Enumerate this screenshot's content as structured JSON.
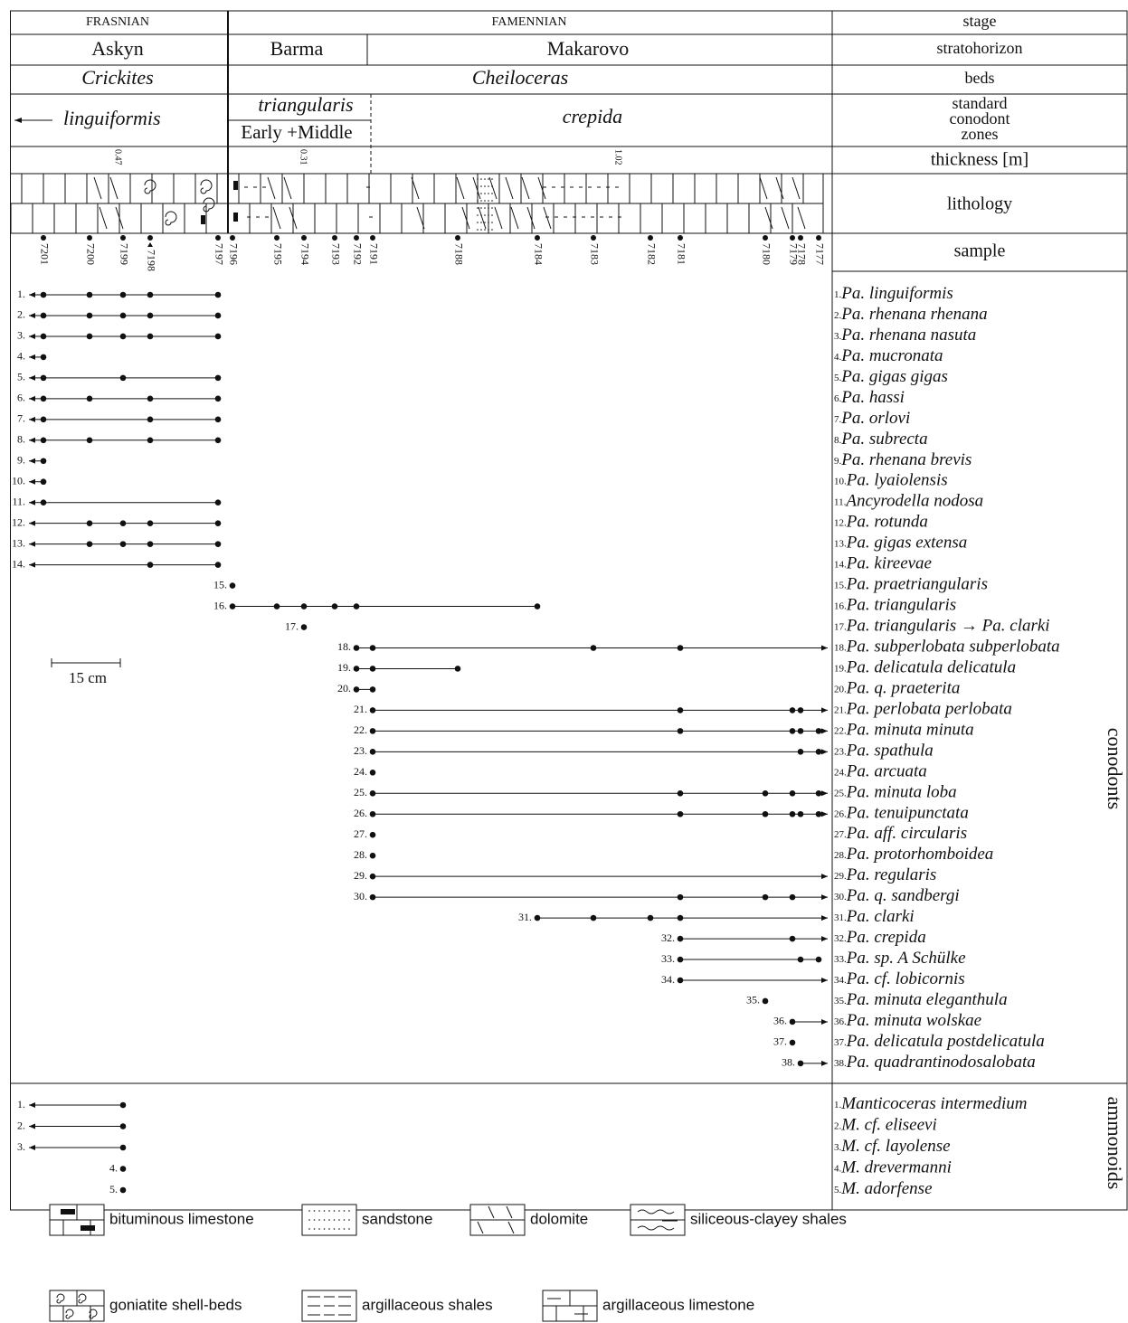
{
  "rows": {
    "stage": {
      "frasnian": "FRASNIAN",
      "famennian": "FAMENNIAN",
      "label": "stage"
    },
    "stratohorizon": {
      "askyn": "Askyn",
      "barma": "Barma",
      "makarovo": "Makarovo",
      "label": "stratohorizon"
    },
    "beds": {
      "crickites": "Crickites",
      "cheiloceras": "Cheiloceras",
      "label": "beds"
    },
    "zones": {
      "linguiformis": "linguiformis",
      "triangularis": "triangularis",
      "early_middle": "Early +Middle",
      "crepida": "crepida",
      "label": [
        "standard",
        "conodont",
        "zones"
      ]
    },
    "thickness": {
      "values": [
        0.47,
        0.31,
        1.02
      ],
      "label": "thickness [m]"
    },
    "lithology": {
      "label": "lithology"
    },
    "sample": {
      "ids": [
        "7201",
        "7200",
        "7199",
        "7198",
        "7197",
        "7196",
        "7195",
        "7194",
        "7193",
        "7192",
        "7191",
        "7188",
        "7184",
        "7183",
        "7182",
        "7181",
        "7180",
        "7179",
        "7178",
        "7177"
      ],
      "label": "sample"
    }
  },
  "conodonts": {
    "label": "conodonts",
    "taxa": [
      {
        "num": "1.",
        "name": "Pa. linguiformis"
      },
      {
        "num": "2.",
        "name": "Pa. rhenana rhenana"
      },
      {
        "num": "3.",
        "name": "Pa. rhenana nasuta"
      },
      {
        "num": "4.",
        "name": "Pa. mucronata"
      },
      {
        "num": "5.",
        "name": "Pa. gigas gigas"
      },
      {
        "num": "6.",
        "name": "Pa. hassi"
      },
      {
        "num": "7.",
        "name": "Pa. orlovi"
      },
      {
        "num": "8.",
        "name": "Pa. subrecta"
      },
      {
        "num": "9.",
        "name": "Pa. rhenana brevis"
      },
      {
        "num": "10.",
        "name": "Pa. lyaiolensis"
      },
      {
        "num": "11.",
        "name": "Ancyrodella nodosa"
      },
      {
        "num": "12.",
        "name": "Pa. rotunda"
      },
      {
        "num": "13.",
        "name": "Pa. gigas extensa"
      },
      {
        "num": "14.",
        "name": "Pa. kireevae"
      },
      {
        "num": "15.",
        "name": "Pa. praetriangularis"
      },
      {
        "num": "16.",
        "name": "Pa. triangularis"
      },
      {
        "num": "17.",
        "name": "Pa. triangularis → Pa. clarki"
      },
      {
        "num": "18.",
        "name": "Pa. subperlobata subperlobata"
      },
      {
        "num": "19.",
        "name": "Pa. delicatula delicatula"
      },
      {
        "num": "20.",
        "name": "Pa. q. praeterita"
      },
      {
        "num": "21.",
        "name": "Pa. perlobata perlobata"
      },
      {
        "num": "22.",
        "name": "Pa. minuta minuta"
      },
      {
        "num": "23.",
        "name": "Pa. spathula"
      },
      {
        "num": "24.",
        "name": "Pa. arcuata"
      },
      {
        "num": "25.",
        "name": "Pa. minuta loba"
      },
      {
        "num": "26.",
        "name": "Pa. tenuipunctata"
      },
      {
        "num": "27.",
        "name": "Pa. aff. circularis"
      },
      {
        "num": "28.",
        "name": "Pa. protorhomboidea"
      },
      {
        "num": "29.",
        "name": "Pa. regularis"
      },
      {
        "num": "30.",
        "name": "Pa. q. sandbergi"
      },
      {
        "num": "31.",
        "name": "Pa. clarki"
      },
      {
        "num": "32.",
        "name": "Pa. crepida"
      },
      {
        "num": "33.",
        "name": "Pa. sp. A Schülke"
      },
      {
        "num": "34.",
        "name": "Pa. cf. lobicornis"
      },
      {
        "num": "35.",
        "name": "Pa. minuta eleganthula"
      },
      {
        "num": "36.",
        "name": "Pa. minuta wolskae"
      },
      {
        "num": "37.",
        "name": "Pa. delicatula postdelicatula"
      },
      {
        "num": "38.",
        "name": "Pa. quadrantinodosalobata"
      }
    ]
  },
  "ammonoids": {
    "label": "ammonoids",
    "taxa": [
      {
        "num": "1.",
        "name": "Manticoceras intermedium"
      },
      {
        "num": "2.",
        "name": "M. cf. eliseevi"
      },
      {
        "num": "3.",
        "name": "M. cf. layolense"
      },
      {
        "num": "4.",
        "name": "M. drevermanni"
      },
      {
        "num": "5.",
        "name": "M. adorfense"
      }
    ]
  },
  "scale_bar": "15 cm",
  "legend": [
    "bituminous limestone",
    "sandstone",
    "dolomite",
    "siliceous-clayey shales",
    "goniatite shell-beds",
    "argillaceous shales",
    "argillaceous limestone"
  ]
}
